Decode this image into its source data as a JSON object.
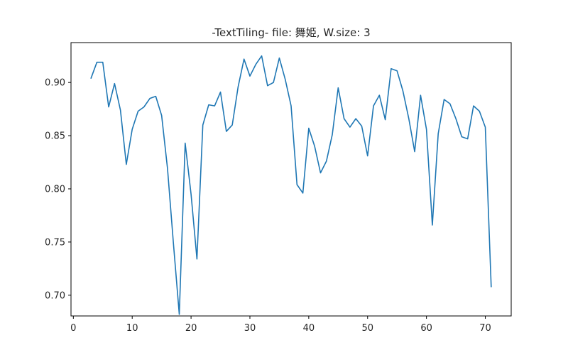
{
  "chart_data": {
    "type": "line",
    "title": "-TextTiling- file: 舞姫, W.size: 3",
    "xlabel": "",
    "ylabel": "",
    "xlim": [
      -0.4,
      74.4
    ],
    "ylim": [
      0.6805,
      0.9375
    ],
    "xticks": [
      0,
      10,
      20,
      30,
      40,
      50,
      60,
      70
    ],
    "yticks": [
      0.7,
      0.75,
      0.8,
      0.85,
      0.9
    ],
    "ytick_labels": [
      "0.70",
      "0.75",
      "0.80",
      "0.85",
      "0.90"
    ],
    "grid": false,
    "legend": "none",
    "series": [
      {
        "color": "#1f77b4",
        "x": [
          3,
          4,
          5,
          6,
          7,
          8,
          9,
          10,
          11,
          12,
          13,
          14,
          15,
          16,
          17,
          18,
          19,
          20,
          21,
          22,
          23,
          24,
          25,
          26,
          27,
          28,
          29,
          30,
          31,
          32,
          33,
          34,
          35,
          36,
          37,
          38,
          39,
          40,
          41,
          42,
          43,
          44,
          45,
          46,
          47,
          48,
          49,
          50,
          51,
          52,
          53,
          54,
          55,
          56,
          57,
          58,
          59,
          60,
          61,
          62,
          63,
          64,
          65,
          66,
          67,
          68,
          69,
          70,
          71
        ],
        "y": [
          0.904,
          0.919,
          0.919,
          0.877,
          0.899,
          0.874,
          0.823,
          0.856,
          0.873,
          0.877,
          0.885,
          0.887,
          0.869,
          0.819,
          0.749,
          0.682,
          0.843,
          0.795,
          0.734,
          0.86,
          0.879,
          0.878,
          0.891,
          0.854,
          0.86,
          0.896,
          0.922,
          0.906,
          0.917,
          0.925,
          0.897,
          0.9,
          0.923,
          0.903,
          0.878,
          0.804,
          0.796,
          0.857,
          0.84,
          0.815,
          0.826,
          0.851,
          0.895,
          0.866,
          0.858,
          0.866,
          0.859,
          0.831,
          0.878,
          0.888,
          0.865,
          0.913,
          0.911,
          0.892,
          0.866,
          0.835,
          0.888,
          0.856,
          0.766,
          0.852,
          0.884,
          0.88,
          0.866,
          0.849,
          0.847,
          0.878,
          0.873,
          0.858,
          0.708
        ]
      }
    ]
  }
}
